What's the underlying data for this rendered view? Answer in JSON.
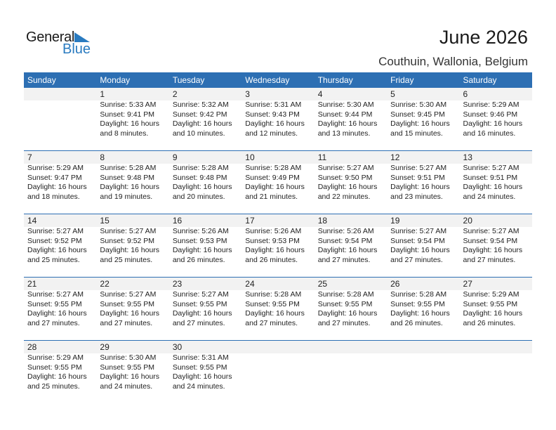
{
  "header": {
    "logo_general": "General",
    "logo_blue": "Blue",
    "title": "June 2026",
    "location": "Couthuin, Wallonia, Belgium",
    "accent": "#2d6fb3"
  },
  "weekdays": [
    "Sunday",
    "Monday",
    "Tuesday",
    "Wednesday",
    "Thursday",
    "Friday",
    "Saturday"
  ],
  "weeks": [
    [
      null,
      {
        "day": "1",
        "sunrise": "Sunrise: 5:33 AM",
        "sunset": "Sunset: 9:41 PM",
        "daylight": "Daylight: 16 hours",
        "minutes": "and 8 minutes."
      },
      {
        "day": "2",
        "sunrise": "Sunrise: 5:32 AM",
        "sunset": "Sunset: 9:42 PM",
        "daylight": "Daylight: 16 hours",
        "minutes": "and 10 minutes."
      },
      {
        "day": "3",
        "sunrise": "Sunrise: 5:31 AM",
        "sunset": "Sunset: 9:43 PM",
        "daylight": "Daylight: 16 hours",
        "minutes": "and 12 minutes."
      },
      {
        "day": "4",
        "sunrise": "Sunrise: 5:30 AM",
        "sunset": "Sunset: 9:44 PM",
        "daylight": "Daylight: 16 hours",
        "minutes": "and 13 minutes."
      },
      {
        "day": "5",
        "sunrise": "Sunrise: 5:30 AM",
        "sunset": "Sunset: 9:45 PM",
        "daylight": "Daylight: 16 hours",
        "minutes": "and 15 minutes."
      },
      {
        "day": "6",
        "sunrise": "Sunrise: 5:29 AM",
        "sunset": "Sunset: 9:46 PM",
        "daylight": "Daylight: 16 hours",
        "minutes": "and 16 minutes."
      }
    ],
    [
      {
        "day": "7",
        "sunrise": "Sunrise: 5:29 AM",
        "sunset": "Sunset: 9:47 PM",
        "daylight": "Daylight: 16 hours",
        "minutes": "and 18 minutes."
      },
      {
        "day": "8",
        "sunrise": "Sunrise: 5:28 AM",
        "sunset": "Sunset: 9:48 PM",
        "daylight": "Daylight: 16 hours",
        "minutes": "and 19 minutes."
      },
      {
        "day": "9",
        "sunrise": "Sunrise: 5:28 AM",
        "sunset": "Sunset: 9:48 PM",
        "daylight": "Daylight: 16 hours",
        "minutes": "and 20 minutes."
      },
      {
        "day": "10",
        "sunrise": "Sunrise: 5:28 AM",
        "sunset": "Sunset: 9:49 PM",
        "daylight": "Daylight: 16 hours",
        "minutes": "and 21 minutes."
      },
      {
        "day": "11",
        "sunrise": "Sunrise: 5:27 AM",
        "sunset": "Sunset: 9:50 PM",
        "daylight": "Daylight: 16 hours",
        "minutes": "and 22 minutes."
      },
      {
        "day": "12",
        "sunrise": "Sunrise: 5:27 AM",
        "sunset": "Sunset: 9:51 PM",
        "daylight": "Daylight: 16 hours",
        "minutes": "and 23 minutes."
      },
      {
        "day": "13",
        "sunrise": "Sunrise: 5:27 AM",
        "sunset": "Sunset: 9:51 PM",
        "daylight": "Daylight: 16 hours",
        "minutes": "and 24 minutes."
      }
    ],
    [
      {
        "day": "14",
        "sunrise": "Sunrise: 5:27 AM",
        "sunset": "Sunset: 9:52 PM",
        "daylight": "Daylight: 16 hours",
        "minutes": "and 25 minutes."
      },
      {
        "day": "15",
        "sunrise": "Sunrise: 5:27 AM",
        "sunset": "Sunset: 9:52 PM",
        "daylight": "Daylight: 16 hours",
        "minutes": "and 25 minutes."
      },
      {
        "day": "16",
        "sunrise": "Sunrise: 5:26 AM",
        "sunset": "Sunset: 9:53 PM",
        "daylight": "Daylight: 16 hours",
        "minutes": "and 26 minutes."
      },
      {
        "day": "17",
        "sunrise": "Sunrise: 5:26 AM",
        "sunset": "Sunset: 9:53 PM",
        "daylight": "Daylight: 16 hours",
        "minutes": "and 26 minutes."
      },
      {
        "day": "18",
        "sunrise": "Sunrise: 5:26 AM",
        "sunset": "Sunset: 9:54 PM",
        "daylight": "Daylight: 16 hours",
        "minutes": "and 27 minutes."
      },
      {
        "day": "19",
        "sunrise": "Sunrise: 5:27 AM",
        "sunset": "Sunset: 9:54 PM",
        "daylight": "Daylight: 16 hours",
        "minutes": "and 27 minutes."
      },
      {
        "day": "20",
        "sunrise": "Sunrise: 5:27 AM",
        "sunset": "Sunset: 9:54 PM",
        "daylight": "Daylight: 16 hours",
        "minutes": "and 27 minutes."
      }
    ],
    [
      {
        "day": "21",
        "sunrise": "Sunrise: 5:27 AM",
        "sunset": "Sunset: 9:55 PM",
        "daylight": "Daylight: 16 hours",
        "minutes": "and 27 minutes."
      },
      {
        "day": "22",
        "sunrise": "Sunrise: 5:27 AM",
        "sunset": "Sunset: 9:55 PM",
        "daylight": "Daylight: 16 hours",
        "minutes": "and 27 minutes."
      },
      {
        "day": "23",
        "sunrise": "Sunrise: 5:27 AM",
        "sunset": "Sunset: 9:55 PM",
        "daylight": "Daylight: 16 hours",
        "minutes": "and 27 minutes."
      },
      {
        "day": "24",
        "sunrise": "Sunrise: 5:28 AM",
        "sunset": "Sunset: 9:55 PM",
        "daylight": "Daylight: 16 hours",
        "minutes": "and 27 minutes."
      },
      {
        "day": "25",
        "sunrise": "Sunrise: 5:28 AM",
        "sunset": "Sunset: 9:55 PM",
        "daylight": "Daylight: 16 hours",
        "minutes": "and 27 minutes."
      },
      {
        "day": "26",
        "sunrise": "Sunrise: 5:28 AM",
        "sunset": "Sunset: 9:55 PM",
        "daylight": "Daylight: 16 hours",
        "minutes": "and 26 minutes."
      },
      {
        "day": "27",
        "sunrise": "Sunrise: 5:29 AM",
        "sunset": "Sunset: 9:55 PM",
        "daylight": "Daylight: 16 hours",
        "minutes": "and 26 minutes."
      }
    ],
    [
      {
        "day": "28",
        "sunrise": "Sunrise: 5:29 AM",
        "sunset": "Sunset: 9:55 PM",
        "daylight": "Daylight: 16 hours",
        "minutes": "and 25 minutes."
      },
      {
        "day": "29",
        "sunrise": "Sunrise: 5:30 AM",
        "sunset": "Sunset: 9:55 PM",
        "daylight": "Daylight: 16 hours",
        "minutes": "and 24 minutes."
      },
      {
        "day": "30",
        "sunrise": "Sunrise: 5:31 AM",
        "sunset": "Sunset: 9:55 PM",
        "daylight": "Daylight: 16 hours",
        "minutes": "and 24 minutes."
      },
      null,
      null,
      null,
      null
    ]
  ]
}
